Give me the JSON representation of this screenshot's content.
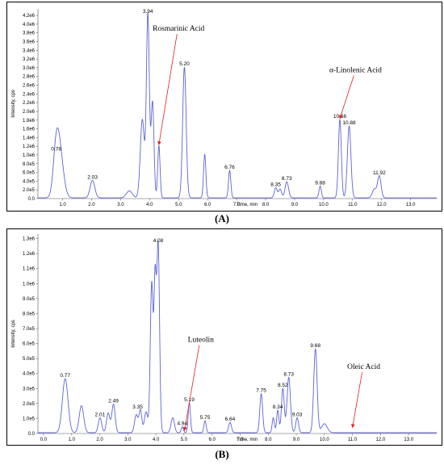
{
  "chart_data": [
    {
      "type": "line",
      "panel_label": "(A)",
      "xlabel": "Time, min",
      "ylabel": "Intensity, cps",
      "xlim": [
        0.15,
        13.9
      ],
      "ylim": [
        0,
        4350000.0
      ],
      "x_ticks": [
        "1.0",
        "2.0",
        "3.0",
        "4.0",
        "5.0",
        "6.0",
        "7.0",
        "8.0",
        "9.0",
        "10.0",
        "11.0",
        "12.0",
        "13.0"
      ],
      "y_ticks": [
        "0.0",
        "2.0e5",
        "4.0e5",
        "6.0e5",
        "8.0e5",
        "1.0e6",
        "1.2e6",
        "1.4e6",
        "1.6e6",
        "1.8e6",
        "2.0e6",
        "2.2e6",
        "2.4e6",
        "2.6e6",
        "2.8e6",
        "3.0e6",
        "3.2e6",
        "3.4e6",
        "3.6e6",
        "3.8e6",
        "4.0e6",
        "4.2e6"
      ],
      "series": [
        {
          "color": "#5b64d6",
          "peaks": [
            [
              0.78,
              1050000.0,
              0.1
            ],
            [
              0.92,
              900000.0,
              0.12
            ],
            [
              2.03,
              400000.0,
              0.08
            ],
            [
              3.3,
              160000.0,
              0.1
            ],
            [
              3.75,
              1800000.0,
              0.07
            ],
            [
              3.94,
              4200000.0,
              0.05
            ],
            [
              4.1,
              2200000.0,
              0.05
            ],
            [
              4.32,
              1200000.0,
              0.04
            ],
            [
              5.2,
              3000000.0,
              0.06
            ],
            [
              5.9,
              1000000.0,
              0.04
            ],
            [
              6.76,
              630000.0,
              0.04
            ],
            [
              8.35,
              230000.0,
              0.05
            ],
            [
              8.5,
              200000.0,
              0.05
            ],
            [
              8.73,
              370000.0,
              0.06
            ],
            [
              9.88,
              270000.0,
              0.04
            ],
            [
              10.56,
              1800000.0,
              0.05
            ],
            [
              10.88,
              1650000.0,
              0.06
            ],
            [
              11.75,
              200000.0,
              0.07
            ],
            [
              11.92,
              500000.0,
              0.06
            ]
          ]
        }
      ],
      "peak_labels": [
        {
          "x": 0.78,
          "y": 1050000.0,
          "text": "0.78"
        },
        {
          "x": 2.03,
          "y": 400000.0,
          "text": "2.03"
        },
        {
          "x": 3.94,
          "y": 4200000.0,
          "text": "3.94"
        },
        {
          "x": 5.2,
          "y": 3000000.0,
          "text": "5.20"
        },
        {
          "x": 6.76,
          "y": 630000.0,
          "text": "6.76"
        },
        {
          "x": 8.35,
          "y": 230000.0,
          "text": "8.35"
        },
        {
          "x": 8.73,
          "y": 370000.0,
          "text": "8.73"
        },
        {
          "x": 9.88,
          "y": 270000.0,
          "text": "9.88"
        },
        {
          "x": 10.56,
          "y": 1800000.0,
          "text": "10.56"
        },
        {
          "x": 10.88,
          "y": 1650000.0,
          "text": "10.88"
        },
        {
          "x": 11.92,
          "y": 500000.0,
          "text": "11.92"
        }
      ],
      "annotations": [
        {
          "text": "Rosmarinic Acid",
          "target_x": 4.32,
          "target_y": 1200000.0,
          "label_x": 5.0,
          "label_y": 3850000.0
        },
        {
          "text": "α-Linolenic Acid",
          "target_x": 10.56,
          "target_y": 1800000.0,
          "label_x": 11.1,
          "label_y": 2900000.0
        }
      ]
    },
    {
      "type": "line",
      "panel_label": "(B)",
      "xlabel": "Time, min",
      "ylabel": "Intensity, cps",
      "xlim": [
        -0.2,
        14.0
      ],
      "ylim": [
        0,
        1330000.0
      ],
      "x_ticks": [
        "0.0",
        "1.0",
        "2.0",
        "3.0",
        "4.0",
        "5.0",
        "6.0",
        "7.0",
        "8.0",
        "9.0",
        "10.0",
        "11.0",
        "12.0",
        "13.0"
      ],
      "y_ticks": [
        "0.0",
        "1.0e5",
        "2.0e5",
        "3.0e5",
        "4.0e5",
        "5.0e5",
        "6.0e5",
        "7.0e5",
        "8.0e5",
        "9.0e5",
        "1.0e6",
        "1.1e6",
        "1.2e6",
        "1.3e6"
      ],
      "series": [
        {
          "color": "#5b64d6",
          "peaks": [
            [
              0.77,
              360000.0,
              0.1
            ],
            [
              1.35,
              180000.0,
              0.08
            ],
            [
              2.01,
              100000.0,
              0.06
            ],
            [
              2.3,
              130000.0,
              0.06
            ],
            [
              2.49,
              190000.0,
              0.06
            ],
            [
              3.3,
              120000.0,
              0.06
            ],
            [
              3.45,
              150000.0,
              0.05
            ],
            [
              3.65,
              140000.0,
              0.06
            ],
            [
              3.85,
              1000000.0,
              0.05
            ],
            [
              3.97,
              950000.0,
              0.04
            ],
            [
              4.08,
              1260000.0,
              0.05
            ],
            [
              4.6,
              100000.0,
              0.06
            ],
            [
              4.94,
              40000.0,
              0.04
            ],
            [
              5.19,
              200000.0,
              0.04
            ],
            [
              5.75,
              80000.0,
              0.04
            ],
            [
              6.64,
              70000.0,
              0.05
            ],
            [
              7.75,
              260000.0,
              0.05
            ],
            [
              8.18,
              100000.0,
              0.04
            ],
            [
              8.34,
              150000.0,
              0.04
            ],
            [
              8.52,
              295000.0,
              0.05
            ],
            [
              8.73,
              370000.0,
              0.06
            ],
            [
              9.03,
              100000.0,
              0.05
            ],
            [
              9.68,
              560000.0,
              0.06
            ],
            [
              10.0,
              60000.0,
              0.1
            ]
          ]
        }
      ],
      "peak_labels": [
        {
          "x": 0.77,
          "y": 360000.0,
          "text": "0.77"
        },
        {
          "x": 2.01,
          "y": 100000.0,
          "text": "2.01"
        },
        {
          "x": 2.49,
          "y": 190000.0,
          "text": "2.49"
        },
        {
          "x": 3.35,
          "y": 150000.0,
          "text": "3.35"
        },
        {
          "x": 4.08,
          "y": 1260000.0,
          "text": "4.08"
        },
        {
          "x": 4.94,
          "y": 40000.0,
          "text": "4.94"
        },
        {
          "x": 5.19,
          "y": 200000.0,
          "text": "5.19"
        },
        {
          "x": 5.75,
          "y": 80000.0,
          "text": "5.75"
        },
        {
          "x": 6.64,
          "y": 70000.0,
          "text": "6.64"
        },
        {
          "x": 7.75,
          "y": 260000.0,
          "text": "7.75"
        },
        {
          "x": 8.34,
          "y": 150000.0,
          "text": "8.34"
        },
        {
          "x": 8.52,
          "y": 295000.0,
          "text": "8.52"
        },
        {
          "x": 8.73,
          "y": 370000.0,
          "text": "8.73"
        },
        {
          "x": 9.03,
          "y": 100000.0,
          "text": "9.03"
        },
        {
          "x": 9.68,
          "y": 560000.0,
          "text": "9.68"
        }
      ],
      "annotations": [
        {
          "text": "Luteolin",
          "target_x": 5.02,
          "target_y": 10000.0,
          "label_x": 5.6,
          "label_y": 610000.0
        },
        {
          "text": "Oleic Acid",
          "target_x": 11.0,
          "target_y": 30000.0,
          "label_x": 11.4,
          "label_y": 430000.0
        }
      ]
    }
  ]
}
